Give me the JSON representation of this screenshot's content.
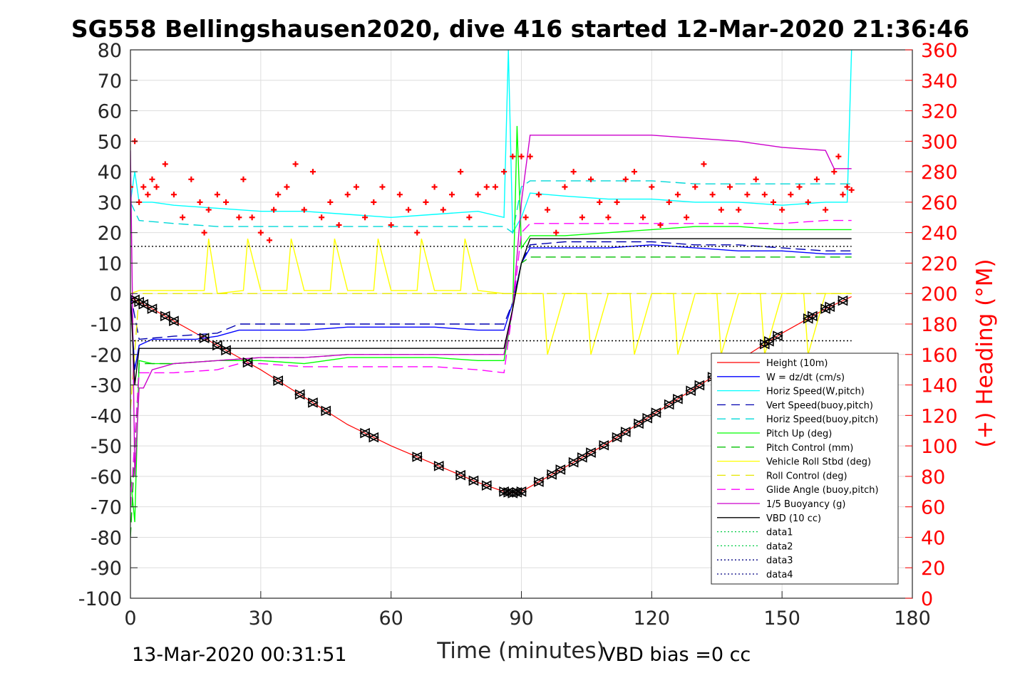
{
  "chart_data": {
    "type": "line",
    "title": "SG558 Bellingshausen2020, dive 416 started 12-Mar-2020 21:36:46",
    "xlabel": "Time (minutes)",
    "ylabel": "",
    "y2label": "(+) Heading (°M)",
    "footer_left": "13-Mar-2020 00:31:51",
    "footer_right": "VBD bias =0 cc",
    "xlim": [
      0,
      180
    ],
    "ylim": [
      -100,
      80
    ],
    "y2lim": [
      0,
      360
    ],
    "xticks": [
      0,
      30,
      60,
      90,
      120,
      150,
      180
    ],
    "yticks": [
      80,
      70,
      60,
      50,
      40,
      30,
      20,
      10,
      0,
      -10,
      -20,
      -30,
      -40,
      -50,
      -60,
      -70,
      -80,
      -90,
      -100
    ],
    "y2ticks": [
      360,
      340,
      320,
      300,
      280,
      260,
      240,
      220,
      200,
      180,
      160,
      140,
      120,
      100,
      80,
      60,
      40,
      20,
      0
    ],
    "grid": true,
    "legend_position": "lower-right",
    "colors": {
      "height": "#ff0000",
      "w": "#0000ff",
      "horiz_w": "#00ffff",
      "vert_buoy": "#0000b0",
      "horiz_buoy": "#00d8d8",
      "pitch": "#00ff00",
      "pitch_ctl": "#00c000",
      "roll": "#ffff00",
      "roll_ctl": "#e6e600",
      "glide": "#ff00ff",
      "buoy": "#cc00cc",
      "vbd": "#000000",
      "heading": "#ff0000",
      "right_axis": "#ff0000"
    },
    "series": [
      {
        "name": "Height (10m)",
        "key": "height",
        "style": "solid",
        "x": [
          0,
          1,
          5,
          10,
          20,
          30,
          40,
          50,
          60,
          70,
          80,
          86,
          88,
          90,
          95,
          100,
          110,
          120,
          130,
          140,
          150,
          160,
          166
        ],
        "y": [
          -1,
          -2,
          -5,
          -9,
          -17,
          -25,
          -34,
          -43,
          -50,
          -56,
          -62,
          -65,
          -65.5,
          -65,
          -61,
          -57,
          -49,
          -40,
          -31,
          -22,
          -13,
          -5,
          -1
        ]
      },
      {
        "name": "W = dz/dt (cm/s)",
        "key": "w",
        "style": "solid",
        "x": [
          0,
          1,
          2,
          5,
          10,
          15,
          20,
          25,
          30,
          40,
          50,
          60,
          70,
          80,
          86,
          88,
          90,
          92,
          100,
          110,
          120,
          130,
          140,
          150,
          160,
          166
        ],
        "y": [
          0,
          -25,
          -17,
          -15,
          -15,
          -15,
          -14,
          -12,
          -12,
          -12,
          -11,
          -11,
          -11,
          -12,
          -12,
          -3,
          10,
          15,
          15,
          15,
          16,
          15,
          14,
          14,
          13,
          13
        ]
      },
      {
        "name": "Horiz Speed(W,pitch)",
        "key": "horiz_w",
        "style": "solid",
        "x": [
          0,
          1,
          2,
          5,
          10,
          20,
          30,
          40,
          50,
          60,
          70,
          80,
          86,
          87,
          88,
          90,
          92,
          100,
          110,
          120,
          130,
          140,
          150,
          160,
          165,
          166
        ],
        "y": [
          30,
          40,
          30,
          30,
          29,
          28,
          27,
          27,
          26,
          25,
          26,
          27,
          25,
          80,
          20,
          25,
          33,
          32,
          31,
          31,
          30,
          30,
          29,
          30,
          30,
          80
        ]
      },
      {
        "name": "Vert Speed(buoy,pitch)",
        "key": "vert_buoy",
        "style": "dashed",
        "x": [
          0,
          2,
          10,
          20,
          25,
          30,
          40,
          50,
          60,
          70,
          80,
          86,
          88,
          90,
          92,
          100,
          110,
          120,
          130,
          140,
          150,
          160,
          166
        ],
        "y": [
          0,
          -15,
          -14,
          -13,
          -10,
          -10,
          -10,
          -10,
          -10,
          -10,
          -10,
          -10,
          -3,
          10,
          16,
          17,
          17,
          17,
          16,
          16,
          15,
          14,
          14
        ]
      },
      {
        "name": "Horiz Speed(buoy,pitch)",
        "key": "horiz_buoy",
        "style": "dashed",
        "x": [
          0,
          2,
          10,
          20,
          25,
          30,
          40,
          50,
          60,
          70,
          80,
          86,
          88,
          90,
          92,
          100,
          110,
          120,
          130,
          140,
          150,
          160,
          166
        ],
        "y": [
          30,
          24,
          23,
          22,
          22,
          22,
          22,
          22,
          22,
          22,
          22,
          22,
          20,
          35,
          37,
          37,
          37,
          37,
          36,
          36,
          36,
          36,
          36
        ]
      },
      {
        "name": "Pitch Up (deg)",
        "key": "pitch",
        "style": "solid",
        "x": [
          0,
          1,
          2,
          5,
          10,
          20,
          30,
          40,
          50,
          60,
          70,
          80,
          86,
          88,
          89,
          90,
          92,
          100,
          110,
          120,
          130,
          140,
          150,
          160,
          166
        ],
        "y": [
          -60,
          -75,
          -22,
          -23,
          -23,
          -22,
          -22,
          -23,
          -21,
          -21,
          -21,
          -22,
          -22,
          -5,
          55,
          15,
          19,
          19,
          20,
          21,
          22,
          22,
          21,
          21,
          21
        ]
      },
      {
        "name": "Pitch Control (mm)",
        "key": "pitch_ctl",
        "style": "dashed",
        "x": [
          0,
          2,
          10,
          20,
          30,
          40,
          50,
          60,
          70,
          80,
          86,
          88,
          90,
          92,
          100,
          110,
          120,
          130,
          140,
          150,
          160,
          166
        ],
        "y": [
          -80,
          -23,
          -23,
          -22,
          -21,
          -21,
          -20,
          -20,
          -20,
          -20,
          -20,
          -5,
          10,
          12,
          12,
          12,
          12,
          12,
          12,
          12,
          12,
          12
        ]
      },
      {
        "name": "Vehicle Roll Stbd (deg)",
        "key": "roll",
        "style": "solid",
        "x": [
          0,
          2,
          5,
          10,
          17,
          18,
          20,
          26,
          27,
          30,
          36,
          37,
          40,
          46,
          47,
          50,
          56,
          57,
          60,
          66,
          67,
          70,
          76,
          77,
          80,
          86,
          88,
          90,
          95,
          96,
          100,
          105,
          106,
          110,
          115,
          116,
          120,
          125,
          126,
          130,
          135,
          136,
          140,
          145,
          146,
          150,
          155,
          156,
          160,
          166
        ],
        "y": [
          0,
          1,
          1,
          1,
          1,
          18,
          0,
          1,
          18,
          1,
          1,
          18,
          1,
          1,
          18,
          1,
          1,
          18,
          1,
          1,
          18,
          1,
          1,
          18,
          1,
          0,
          0,
          0,
          0,
          -20,
          0,
          0,
          -20,
          0,
          0,
          -20,
          0,
          0,
          -20,
          0,
          0,
          -20,
          0,
          0,
          -20,
          0,
          0,
          -20,
          0,
          0
        ]
      },
      {
        "name": "Roll Control (deg)",
        "key": "roll_ctl",
        "style": "dashed",
        "x": [
          0,
          2,
          10,
          20,
          30,
          40,
          50,
          60,
          70,
          80,
          86,
          90,
          100,
          110,
          120,
          130,
          140,
          150,
          160,
          166
        ],
        "y": [
          -38,
          0,
          0,
          0,
          0,
          0,
          0,
          0,
          0,
          0,
          0,
          0,
          0,
          0,
          0,
          0,
          0,
          0,
          0,
          0
        ]
      },
      {
        "name": "Glide Angle (buoy,pitch)",
        "key": "glide",
        "style": "dashed",
        "x": [
          0,
          2,
          10,
          20,
          25,
          30,
          40,
          50,
          60,
          70,
          80,
          86,
          88,
          90,
          92,
          100,
          110,
          120,
          130,
          140,
          150,
          160,
          166
        ],
        "y": [
          -70,
          -26,
          -26,
          -25,
          -23,
          -23,
          -24,
          -24,
          -24,
          -24,
          -25,
          -26,
          -5,
          20,
          23,
          23,
          23,
          23,
          23,
          23,
          23,
          24,
          24
        ]
      },
      {
        "name": "1/5 Buoyancy (g)",
        "key": "buoy",
        "style": "solid",
        "x": [
          0,
          1,
          2,
          3,
          5,
          10,
          20,
          30,
          40,
          50,
          60,
          70,
          80,
          86,
          88,
          90,
          92,
          100,
          110,
          120,
          130,
          140,
          150,
          160,
          162,
          166
        ],
        "y": [
          47,
          -60,
          -31,
          -31,
          -25,
          -23,
          -22,
          -21,
          -21,
          -20,
          -20,
          -20,
          -20,
          -20,
          -5,
          30,
          52,
          52,
          52,
          52,
          51,
          50,
          48,
          47,
          41,
          41
        ]
      },
      {
        "name": "VBD (10 cc)",
        "key": "vbd",
        "style": "solid",
        "x": [
          0,
          1,
          2,
          5,
          10,
          20,
          30,
          40,
          50,
          60,
          70,
          80,
          86,
          88,
          90,
          92,
          100,
          110,
          120,
          130,
          140,
          150,
          160,
          166
        ],
        "y": [
          0,
          -30,
          -18,
          -18,
          -18,
          -18,
          -18,
          -18,
          -18,
          -18,
          -18,
          -18,
          -18,
          -5,
          10,
          18,
          18,
          18,
          18,
          18,
          18,
          18,
          18,
          18
        ]
      },
      {
        "name": "data1",
        "key": "data1",
        "style": "dotted",
        "x": [],
        "y": []
      },
      {
        "name": "data2",
        "key": "data2",
        "style": "dotted",
        "x": [],
        "y": []
      },
      {
        "name": "data3",
        "key": "data3",
        "style": "dotted",
        "x": [
          0,
          166
        ],
        "y": [
          15.5,
          15.5
        ]
      },
      {
        "name": "data4",
        "key": "data4",
        "style": "dotted",
        "x": [
          0,
          166
        ],
        "y": [
          -15.5,
          -15.5
        ]
      }
    ],
    "heading_points": {
      "axis": "right",
      "x": [
        0,
        1,
        2,
        3,
        4,
        5,
        6,
        8,
        10,
        12,
        14,
        16,
        17,
        18,
        20,
        22,
        25,
        26,
        28,
        30,
        32,
        33,
        34,
        36,
        38,
        40,
        42,
        44,
        46,
        48,
        50,
        52,
        54,
        56,
        58,
        60,
        62,
        64,
        66,
        68,
        70,
        72,
        74,
        76,
        78,
        80,
        82,
        84,
        86,
        88,
        90,
        91,
        92,
        94,
        96,
        98,
        100,
        102,
        104,
        106,
        108,
        110,
        112,
        114,
        116,
        118,
        120,
        122,
        124,
        126,
        128,
        130,
        132,
        134,
        136,
        138,
        140,
        142,
        144,
        146,
        148,
        150,
        152,
        154,
        156,
        158,
        160,
        162,
        163,
        164,
        165,
        166
      ],
      "y": [
        270,
        300,
        260,
        270,
        265,
        275,
        270,
        285,
        265,
        250,
        275,
        260,
        240,
        255,
        265,
        260,
        250,
        275,
        250,
        240,
        235,
        255,
        265,
        270,
        285,
        255,
        280,
        250,
        260,
        245,
        265,
        270,
        250,
        260,
        270,
        245,
        265,
        255,
        240,
        260,
        270,
        255,
        265,
        280,
        250,
        265,
        270,
        270,
        280,
        290,
        290,
        250,
        290,
        265,
        255,
        240,
        270,
        280,
        250,
        275,
        260,
        250,
        260,
        275,
        280,
        250,
        270,
        245,
        260,
        265,
        250,
        270,
        285,
        265,
        255,
        270,
        255,
        265,
        275,
        265,
        260,
        255,
        265,
        270,
        260,
        275,
        255,
        280,
        290,
        265,
        270,
        268
      ]
    },
    "triangle_markers": {
      "series": "height",
      "x": [
        1,
        2,
        3,
        5,
        8,
        10,
        17,
        20,
        22,
        27,
        34,
        39,
        42,
        45,
        54,
        56,
        66,
        71,
        76,
        79,
        82,
        86,
        87,
        88,
        89,
        90,
        94,
        97,
        99,
        102,
        104,
        106,
        109,
        112,
        114,
        117,
        119,
        121,
        124,
        126,
        129,
        131,
        134,
        146,
        147,
        149,
        156,
        157,
        160,
        161,
        164
      ]
    }
  }
}
